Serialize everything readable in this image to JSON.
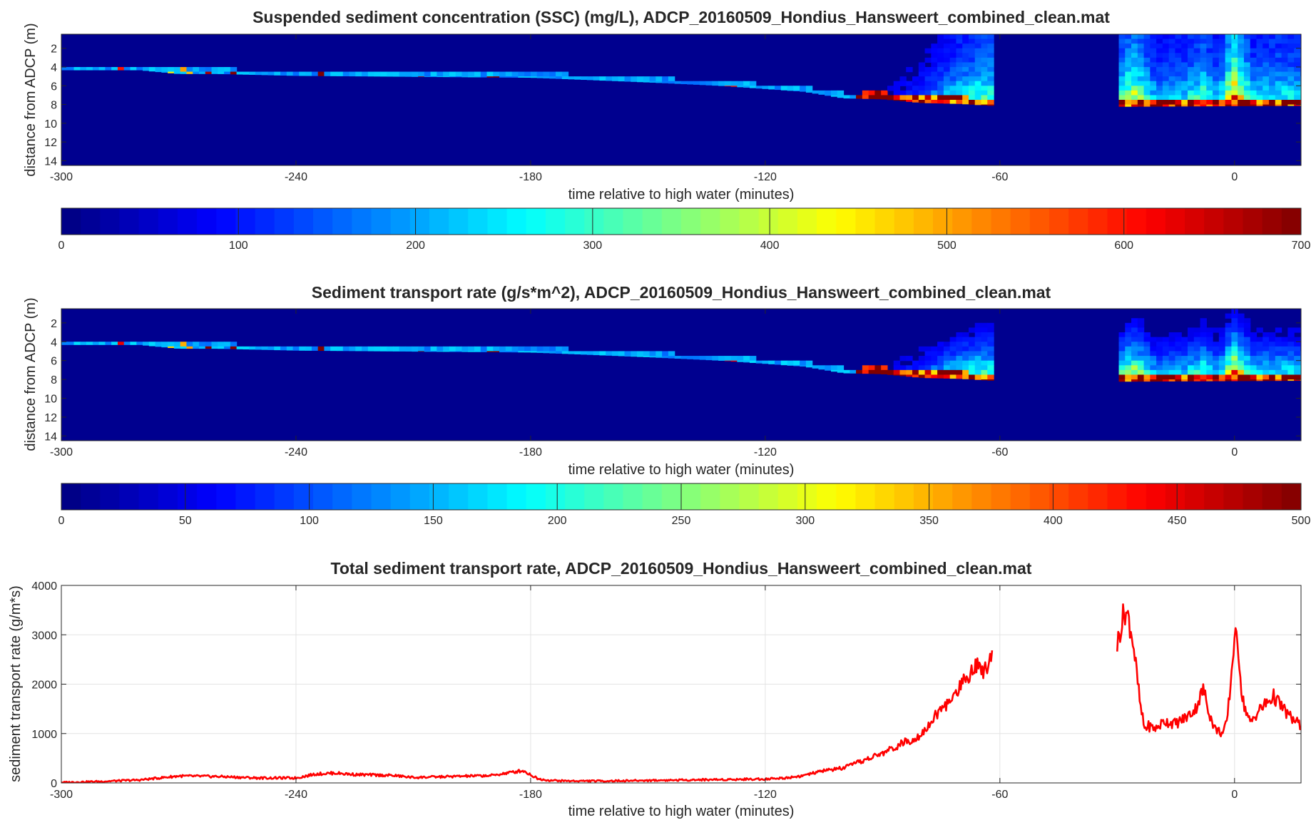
{
  "chart_data": [
    {
      "type": "heatmap",
      "title": "Suspended sediment concentration (SSC) (mg/L), ADCP_20160509_Hondius_Hansweert_combined_clean.mat",
      "xlabel": "time relative to high water (minutes)",
      "ylabel": "distance from ADCP (m)",
      "xlim": [
        -300,
        17
      ],
      "ylim": [
        14.5,
        0.5
      ],
      "xticks": [
        -300,
        -240,
        -180,
        -120,
        -60,
        0
      ],
      "yticks": [
        2,
        4,
        6,
        8,
        10,
        12,
        14
      ],
      "y_reversed": true,
      "colormap": "jet",
      "colorbar": {
        "location": "bottom",
        "range": [
          0,
          700
        ],
        "ticks": [
          0,
          100,
          200,
          300,
          400,
          500,
          600,
          700
        ]
      },
      "data_gap": [
        -62,
        -30
      ],
      "bed_depth": {
        "x": [
          -300,
          -280,
          -270,
          -260,
          -240,
          -180,
          -150,
          -130,
          -110,
          -100,
          -90,
          -80,
          -70,
          -62,
          -30,
          17
        ],
        "y": [
          4.3,
          4.3,
          4.7,
          4.7,
          4.9,
          5.1,
          5.6,
          6.0,
          6.6,
          7.3,
          7.4,
          7.8,
          7.9,
          8.1,
          8.2,
          8.1
        ]
      },
      "surface_ssc": {
        "x": [
          -300,
          -240,
          -180,
          -120,
          -90,
          -80,
          -70,
          -62,
          -30,
          -26,
          -20,
          -12,
          -8,
          -4,
          0,
          5,
          10,
          17
        ],
        "y": [
          30,
          35,
          40,
          50,
          70,
          150,
          300,
          380,
          300,
          500,
          250,
          300,
          380,
          260,
          650,
          280,
          330,
          300
        ]
      }
    },
    {
      "type": "heatmap",
      "title": "Sediment transport rate (g/s*m^2), ADCP_20160509_Hondius_Hansweert_combined_clean.mat",
      "xlabel": "time relative to high water (minutes)",
      "ylabel": "distance from ADCP (m)",
      "xlim": [
        -300,
        17
      ],
      "ylim": [
        14.5,
        0.5
      ],
      "xticks": [
        -300,
        -240,
        -180,
        -120,
        -60,
        0
      ],
      "yticks": [
        2,
        4,
        6,
        8,
        10,
        12,
        14
      ],
      "y_reversed": true,
      "colormap": "jet",
      "colorbar": {
        "location": "bottom",
        "range": [
          0,
          500
        ],
        "ticks": [
          0,
          50,
          100,
          150,
          200,
          250,
          300,
          350,
          400,
          450,
          500
        ]
      },
      "data_gap": [
        -62,
        -30
      ]
    },
    {
      "type": "line",
      "title": "Total sediment transport rate, ADCP_20160509_Hondius_Hansweert_combined_clean.mat",
      "xlabel": "time relative to high water (minutes)",
      "ylabel": "sediment transport rate (g/m*s)",
      "xlim": [
        -300,
        17
      ],
      "ylim": [
        0,
        4000
      ],
      "xticks": [
        -300,
        -240,
        -180,
        -120,
        -60,
        0
      ],
      "yticks": [
        0,
        1000,
        2000,
        3000,
        4000
      ],
      "grid": true,
      "series": [
        {
          "color": "#ff0000",
          "segments": [
            {
              "x": [
                -300,
                -290,
                -280,
                -270,
                -260,
                -250,
                -240,
                -235,
                -230,
                -225,
                -220,
                -215,
                -210,
                -200,
                -190,
                -182,
                -178,
                -175,
                -170,
                -160,
                -150,
                -140,
                -130,
                -120,
                -115,
                -110,
                -105,
                -100,
                -95,
                -90,
                -85,
                -82,
                -80,
                -78,
                -75,
                -72,
                -70,
                -68,
                -66,
                -64,
                -62
              ],
              "y": [
                10,
                30,
                60,
                140,
                130,
                100,
                100,
                180,
                200,
                170,
                160,
                150,
                110,
                130,
                150,
                250,
                80,
                50,
                40,
                40,
                50,
                60,
                70,
                80,
                100,
                150,
                250,
                300,
                450,
                600,
                800,
                900,
                1000,
                1200,
                1500,
                1700,
                2000,
                2200,
                2400,
                2300,
                2600
              ]
            },
            {
              "x": [
                -30,
                -29,
                -28,
                -27,
                -26,
                -25,
                -24,
                -23,
                -22,
                -20,
                -18,
                -15,
                -12,
                -10,
                -8,
                -6,
                -5,
                -4,
                -3,
                -2,
                -1,
                0,
                1,
                2,
                4,
                6,
                8,
                10,
                12,
                14,
                17
              ],
              "y": [
                2800,
                3200,
                3500,
                3300,
                2900,
                2200,
                1500,
                1100,
                1150,
                1100,
                1250,
                1200,
                1350,
                1500,
                1900,
                1300,
                1100,
                1050,
                1000,
                1200,
                2000,
                3000,
                2700,
                1700,
                1200,
                1450,
                1600,
                1750,
                1550,
                1350,
                1150
              ]
            }
          ]
        }
      ]
    }
  ]
}
